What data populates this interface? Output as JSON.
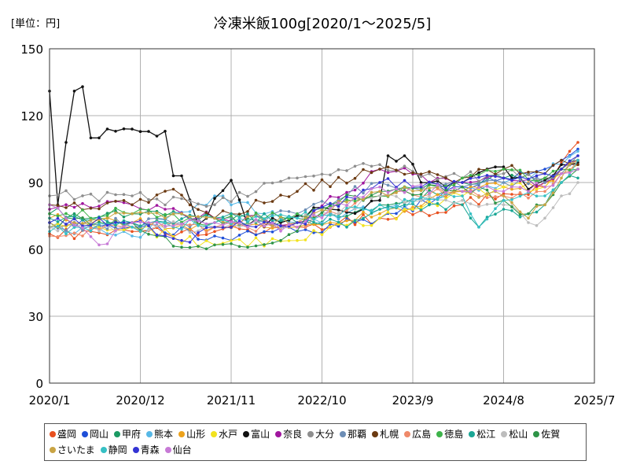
{
  "chart_data": {
    "type": "line",
    "title": "冷凍米飯100g[2020/1～2025/5]",
    "unit_label": "[単位：円]",
    "x_tick_labels": [
      "2020/1",
      "2020/12",
      "2021/11",
      "2022/10",
      "2023/9",
      "2024/8",
      "2025/7"
    ],
    "x_start": "2020-01",
    "x_end": "2025-07",
    "ylim": [
      0,
      150
    ],
    "y_ticks": [
      0,
      30,
      60,
      90,
      120,
      150
    ],
    "grid": true,
    "legend_position": "bottom",
    "series": [
      {
        "name": "盛岡",
        "color": "#e8501f",
        "anchors": [
          [
            0,
            67
          ],
          [
            10,
            68
          ],
          [
            20,
            68
          ],
          [
            30,
            70
          ],
          [
            40,
            74
          ],
          [
            50,
            80
          ],
          [
            55,
            85
          ],
          [
            60,
            88
          ],
          [
            62,
            99
          ],
          [
            64,
            108
          ],
          [
            65,
            108
          ]
        ]
      },
      {
        "name": "岡山",
        "color": "#1f4fd8",
        "anchors": [
          [
            0,
            72
          ],
          [
            10,
            70
          ],
          [
            20,
            66
          ],
          [
            30,
            68
          ],
          [
            40,
            74
          ],
          [
            50,
            88
          ],
          [
            55,
            92
          ],
          [
            60,
            96
          ],
          [
            62,
            100
          ],
          [
            64,
            105
          ],
          [
            65,
            105
          ]
        ]
      },
      {
        "name": "甲府",
        "color": "#1b9a63",
        "anchors": [
          [
            0,
            76
          ],
          [
            10,
            76
          ],
          [
            20,
            74
          ],
          [
            30,
            72
          ],
          [
            40,
            80
          ],
          [
            50,
            90
          ],
          [
            55,
            92
          ],
          [
            60,
            92
          ],
          [
            62,
            96
          ],
          [
            64,
            100
          ],
          [
            65,
            100
          ]
        ]
      },
      {
        "name": "熊本",
        "color": "#57b8e6",
        "anchors": [
          [
            0,
            70
          ],
          [
            10,
            66
          ],
          [
            20,
            84
          ],
          [
            30,
            72
          ],
          [
            40,
            78
          ],
          [
            50,
            86
          ],
          [
            55,
            90
          ],
          [
            60,
            94
          ],
          [
            62,
            98
          ],
          [
            64,
            104
          ],
          [
            65,
            104
          ]
        ]
      },
      {
        "name": "山形",
        "color": "#eda21c",
        "anchors": [
          [
            0,
            74
          ],
          [
            10,
            72
          ],
          [
            20,
            70
          ],
          [
            30,
            70
          ],
          [
            40,
            76
          ],
          [
            50,
            86
          ],
          [
            55,
            88
          ],
          [
            60,
            90
          ],
          [
            62,
            96
          ],
          [
            64,
            98
          ],
          [
            65,
            98
          ]
        ]
      },
      {
        "name": "水戸",
        "color": "#f2e21e",
        "anchors": [
          [
            0,
            70
          ],
          [
            10,
            70
          ],
          [
            20,
            62
          ],
          [
            30,
            64
          ],
          [
            40,
            74
          ],
          [
            50,
            84
          ],
          [
            55,
            88
          ],
          [
            60,
            88
          ],
          [
            62,
            94
          ],
          [
            64,
            100
          ],
          [
            65,
            100
          ]
        ]
      },
      {
        "name": "富山",
        "color": "#111111",
        "anchors": [
          [
            0,
            131
          ],
          [
            1,
            80
          ],
          [
            2,
            108
          ],
          [
            3,
            131
          ],
          [
            4,
            133
          ],
          [
            5,
            110
          ],
          [
            6,
            110
          ],
          [
            7,
            114
          ],
          [
            8,
            113
          ],
          [
            14,
            113
          ],
          [
            15,
            93
          ],
          [
            16,
            93
          ],
          [
            18,
            71
          ],
          [
            22,
            91
          ],
          [
            24,
            71
          ],
          [
            34,
            78
          ],
          [
            38,
            78
          ],
          [
            40,
            82
          ],
          [
            41,
            102
          ],
          [
            43,
            102
          ],
          [
            45,
            90
          ],
          [
            50,
            90
          ],
          [
            54,
            97
          ],
          [
            55,
            97
          ],
          [
            58,
            87
          ],
          [
            60,
            91
          ],
          [
            62,
            98
          ],
          [
            64,
            99
          ],
          [
            65,
            99
          ]
        ]
      },
      {
        "name": "奈良",
        "color": "#a0169e",
        "anchors": [
          [
            0,
            78
          ],
          [
            10,
            80
          ],
          [
            20,
            74
          ],
          [
            30,
            72
          ],
          [
            40,
            96
          ],
          [
            50,
            90
          ],
          [
            55,
            92
          ],
          [
            60,
            90
          ],
          [
            62,
            96
          ],
          [
            64,
            100
          ],
          [
            65,
            100
          ]
        ]
      },
      {
        "name": "大分",
        "color": "#8e8e8e",
        "anchors": [
          [
            0,
            84
          ],
          [
            10,
            84
          ],
          [
            20,
            80
          ],
          [
            30,
            92
          ],
          [
            40,
            98
          ],
          [
            50,
            92
          ],
          [
            55,
            94
          ],
          [
            60,
            92
          ],
          [
            62,
            96
          ],
          [
            64,
            102
          ],
          [
            65,
            102
          ]
        ]
      },
      {
        "name": "那覇",
        "color": "#6c8db5",
        "anchors": [
          [
            0,
            70
          ],
          [
            10,
            72
          ],
          [
            20,
            72
          ],
          [
            30,
            76
          ],
          [
            40,
            90
          ],
          [
            50,
            88
          ],
          [
            55,
            90
          ],
          [
            60,
            90
          ],
          [
            62,
            94
          ],
          [
            64,
            98
          ],
          [
            65,
            98
          ]
        ]
      },
      {
        "name": "札幌",
        "color": "#6b3a12",
        "anchors": [
          [
            0,
            80
          ],
          [
            10,
            80
          ],
          [
            15,
            87
          ],
          [
            20,
            74
          ],
          [
            30,
            86
          ],
          [
            40,
            96
          ],
          [
            50,
            92
          ],
          [
            55,
            96
          ],
          [
            60,
            94
          ],
          [
            62,
            100
          ],
          [
            64,
            98
          ],
          [
            65,
            98
          ]
        ]
      },
      {
        "name": "広島",
        "color": "#ef8a6a",
        "anchors": [
          [
            0,
            66
          ],
          [
            10,
            70
          ],
          [
            20,
            70
          ],
          [
            30,
            70
          ],
          [
            40,
            84
          ],
          [
            50,
            86
          ],
          [
            55,
            84
          ],
          [
            60,
            86
          ],
          [
            62,
            94
          ],
          [
            64,
            100
          ],
          [
            65,
            100
          ]
        ]
      },
      {
        "name": "徳島",
        "color": "#3db34a",
        "anchors": [
          [
            0,
            76
          ],
          [
            10,
            76
          ],
          [
            20,
            72
          ],
          [
            30,
            76
          ],
          [
            40,
            84
          ],
          [
            50,
            92
          ],
          [
            55,
            96
          ],
          [
            60,
            92
          ],
          [
            62,
            96
          ],
          [
            64,
            96
          ],
          [
            65,
            96
          ]
        ]
      },
      {
        "name": "松江",
        "color": "#1aa695",
        "anchors": [
          [
            0,
            74
          ],
          [
            10,
            72
          ],
          [
            20,
            74
          ],
          [
            30,
            74
          ],
          [
            36,
            70
          ],
          [
            40,
            78
          ],
          [
            50,
            80
          ],
          [
            52,
            70
          ],
          [
            55,
            78
          ],
          [
            58,
            76
          ],
          [
            60,
            80
          ],
          [
            62,
            90
          ],
          [
            64,
            92
          ],
          [
            65,
            92
          ]
        ]
      },
      {
        "name": "松山",
        "color": "#bdbdbd",
        "anchors": [
          [
            0,
            70
          ],
          [
            10,
            70
          ],
          [
            20,
            70
          ],
          [
            30,
            72
          ],
          [
            40,
            84
          ],
          [
            50,
            82
          ],
          [
            55,
            80
          ],
          [
            58,
            72
          ],
          [
            60,
            74
          ],
          [
            62,
            84
          ],
          [
            64,
            90
          ],
          [
            65,
            90
          ]
        ]
      },
      {
        "name": "佐賀",
        "color": "#2e9447",
        "anchors": [
          [
            0,
            72
          ],
          [
            10,
            72
          ],
          [
            16,
            61
          ],
          [
            20,
            62
          ],
          [
            28,
            64
          ],
          [
            34,
            80
          ],
          [
            40,
            86
          ],
          [
            50,
            88
          ],
          [
            55,
            82
          ],
          [
            58,
            76
          ],
          [
            60,
            80
          ],
          [
            62,
            90
          ],
          [
            64,
            96
          ],
          [
            65,
            96
          ]
        ]
      },
      {
        "name": "さいたま",
        "color": "#c9a444",
        "anchors": [
          [
            0,
            72
          ],
          [
            10,
            76
          ],
          [
            20,
            74
          ],
          [
            30,
            72
          ],
          [
            40,
            86
          ],
          [
            50,
            86
          ],
          [
            55,
            84
          ],
          [
            58,
            74
          ],
          [
            60,
            80
          ],
          [
            62,
            92
          ],
          [
            64,
            100
          ],
          [
            65,
            100
          ]
        ]
      },
      {
        "name": "静岡",
        "color": "#36c0c4",
        "anchors": [
          [
            0,
            68
          ],
          [
            10,
            70
          ],
          [
            20,
            72
          ],
          [
            30,
            74
          ],
          [
            38,
            78
          ],
          [
            40,
            80
          ],
          [
            50,
            84
          ],
          [
            52,
            70
          ],
          [
            55,
            82
          ],
          [
            60,
            84
          ],
          [
            62,
            90
          ],
          [
            64,
            100
          ],
          [
            65,
            100
          ]
        ]
      },
      {
        "name": "青森",
        "color": "#3434d4",
        "anchors": [
          [
            0,
            72
          ],
          [
            10,
            72
          ],
          [
            16,
            64
          ],
          [
            20,
            70
          ],
          [
            30,
            72
          ],
          [
            40,
            90
          ],
          [
            50,
            90
          ],
          [
            55,
            92
          ],
          [
            60,
            94
          ],
          [
            62,
            96
          ],
          [
            64,
            102
          ],
          [
            65,
            102
          ]
        ]
      },
      {
        "name": "仙台",
        "color": "#c77ad6",
        "anchors": [
          [
            0,
            80
          ],
          [
            6,
            62
          ],
          [
            10,
            72
          ],
          [
            20,
            72
          ],
          [
            30,
            70
          ],
          [
            40,
            88
          ],
          [
            50,
            86
          ],
          [
            55,
            86
          ],
          [
            60,
            88
          ],
          [
            62,
            94
          ],
          [
            64,
            96
          ],
          [
            65,
            96
          ]
        ]
      }
    ]
  }
}
